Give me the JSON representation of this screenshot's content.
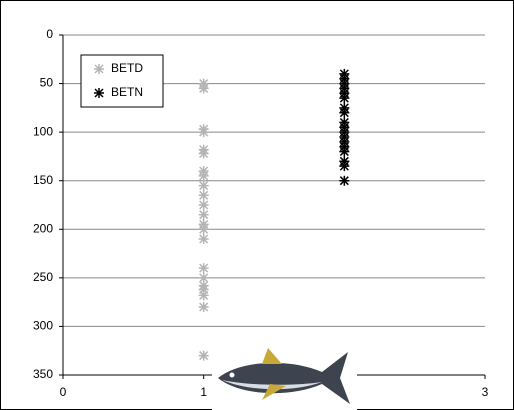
{
  "chart_data": {
    "type": "scatter",
    "series": [
      {
        "name": "BETD",
        "color": "#b4b4b4",
        "marker": "asterisk",
        "x": [
          1,
          1,
          1,
          1,
          1,
          1,
          1,
          1,
          1,
          1,
          1,
          1,
          1,
          1,
          1,
          1,
          1,
          1,
          1,
          1,
          1,
          1
        ],
        "values": [
          50,
          55,
          97,
          100,
          118,
          122,
          140,
          145,
          155,
          165,
          175,
          185,
          195,
          200,
          210,
          240,
          250,
          258,
          262,
          268,
          280,
          330
        ]
      },
      {
        "name": "BETN",
        "color": "#000000",
        "marker": "asterisk",
        "x": [
          2,
          2,
          2,
          2,
          2,
          2,
          2,
          2,
          2,
          2,
          2,
          2,
          2,
          2,
          2,
          2,
          2,
          2
        ],
        "values": [
          40,
          45,
          50,
          55,
          60,
          65,
          75,
          80,
          90,
          95,
          100,
          105,
          110,
          115,
          120,
          130,
          135,
          150
        ]
      }
    ],
    "xlim": [
      0,
      3
    ],
    "xticks": [
      0,
      1,
      3
    ],
    "ylim": [
      0,
      350
    ],
    "yticks": [
      0,
      50,
      100,
      150,
      200,
      250,
      300,
      350
    ],
    "y_inverted": true,
    "grid": true,
    "legend": "top-left"
  }
}
